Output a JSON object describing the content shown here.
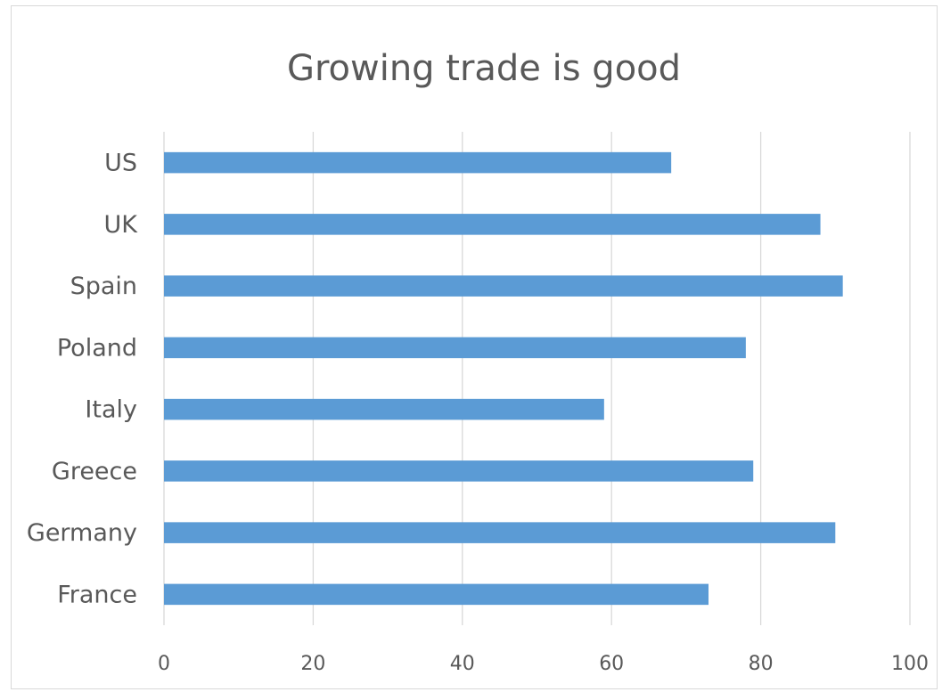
{
  "chart_data": {
    "type": "bar",
    "orientation": "horizontal",
    "title": "Growing trade is good",
    "categories": [
      "US",
      "UK",
      "Spain",
      "Poland",
      "Italy",
      "Greece",
      "Germany",
      "France"
    ],
    "values": [
      68,
      88,
      91,
      78,
      59,
      79,
      90,
      73
    ],
    "xlim": [
      0,
      100
    ],
    "xticks": [
      0,
      20,
      40,
      60,
      80,
      100
    ],
    "xlabel": "",
    "ylabel": "",
    "grid": "vertical",
    "legend": "none",
    "bar_color": "#5b9bd5",
    "grid_color": "#d9d9d9",
    "text_color": "#595959"
  }
}
